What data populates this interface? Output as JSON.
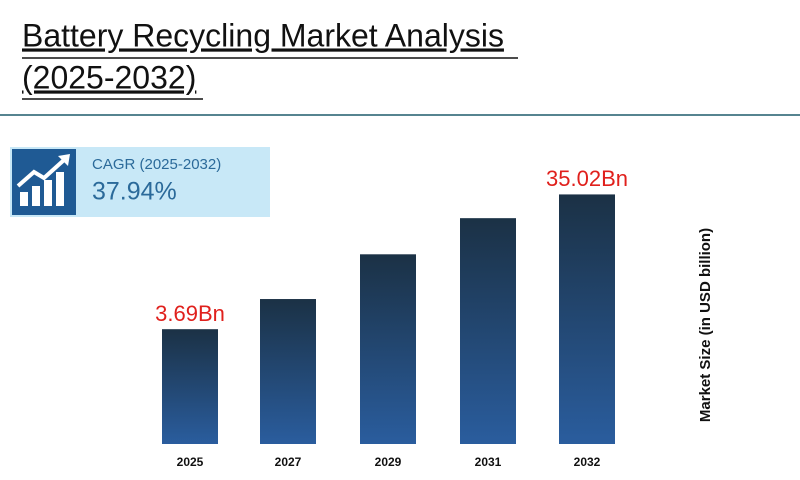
{
  "chart_data": {
    "type": "bar",
    "title": [
      "Battery Recycling Market Analysis",
      "(2025-2032)"
    ],
    "cagr": {
      "label": "CAGR (2025-2032)",
      "value": "37.94%"
    },
    "y_label": "Market Size (in USD billion)",
    "categories": [
      "2025",
      "2027",
      "2029",
      "2031",
      "2032"
    ],
    "values": [
      3.69,
      10.7,
      21.1,
      29.5,
      35.02
    ],
    "value_labels": [
      "3.69Bn",
      null,
      null,
      null,
      "35.02Bn"
    ],
    "ylim": [
      -23,
      40
    ],
    "color_top": "#1b3145",
    "color_bottom": "#2a5d9e",
    "label_color": "#e0201c"
  }
}
